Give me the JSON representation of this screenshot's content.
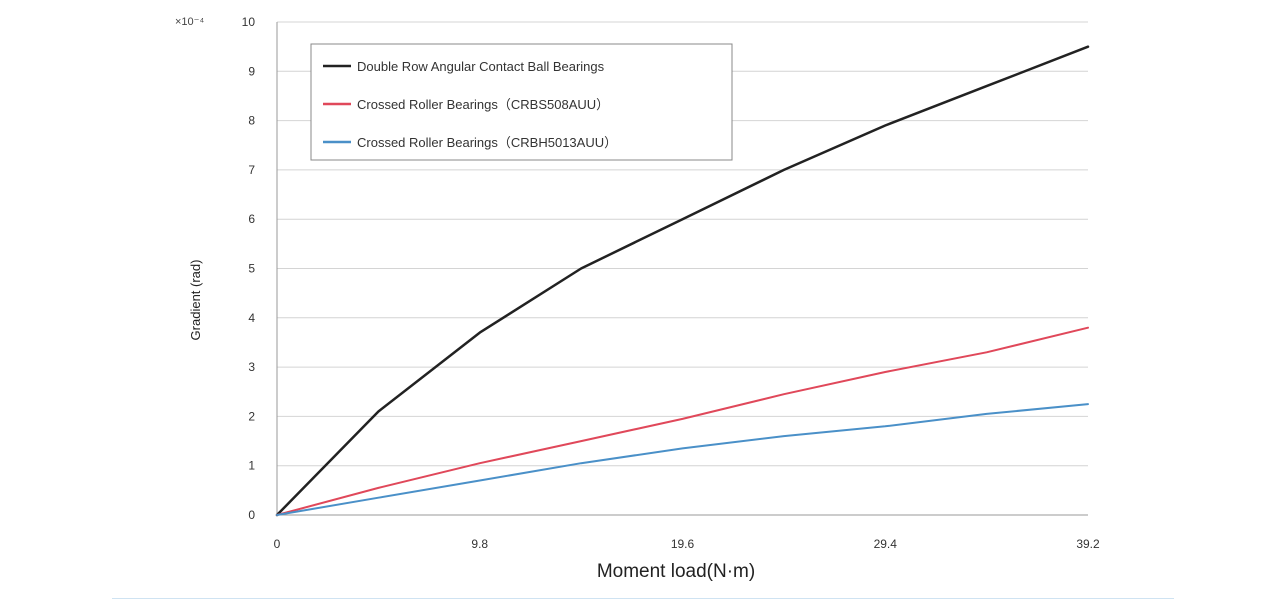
{
  "chart_data": {
    "type": "line",
    "title": "",
    "xlabel": "Moment load(N·m)",
    "ylabel": "Gradient (rad)",
    "y_multiplier": "×10⁻⁴",
    "x": [
      0,
      4.9,
      9.8,
      14.7,
      19.6,
      24.5,
      29.4,
      34.3,
      39.2
    ],
    "x_tick_labels": [
      "0",
      "9.8",
      "19.6",
      "29.4",
      "39.2"
    ],
    "x_ticks": [
      0,
      9.8,
      19.6,
      29.4,
      39.2
    ],
    "xlim": [
      0,
      39.2
    ],
    "y_ticks": [
      0,
      1,
      2,
      3,
      4,
      5,
      6,
      7,
      8,
      9,
      10
    ],
    "y_tick_labels": [
      "0",
      "1",
      "2",
      "3",
      "4",
      "5",
      "6",
      "7",
      "8",
      "9",
      "10"
    ],
    "ylim": [
      0,
      10
    ],
    "grid": true,
    "legend_position": "top-left",
    "series": [
      {
        "name": "Double Row Angular Contact Ball Bearings",
        "color": "#222222",
        "values": [
          0,
          2.1,
          3.7,
          5.0,
          6.0,
          7.0,
          7.9,
          8.7,
          9.5
        ]
      },
      {
        "name": "Crossed Roller Bearings（CRBS508AUU）",
        "color": "#e0485a",
        "values": [
          0,
          0.55,
          1.05,
          1.5,
          1.95,
          2.45,
          2.9,
          3.3,
          3.8
        ]
      },
      {
        "name": "Crossed Roller Bearings（CRBH5013AUU）",
        "color": "#4a90c8",
        "values": [
          0,
          0.35,
          0.7,
          1.05,
          1.35,
          1.6,
          1.8,
          2.05,
          2.25
        ]
      }
    ]
  }
}
